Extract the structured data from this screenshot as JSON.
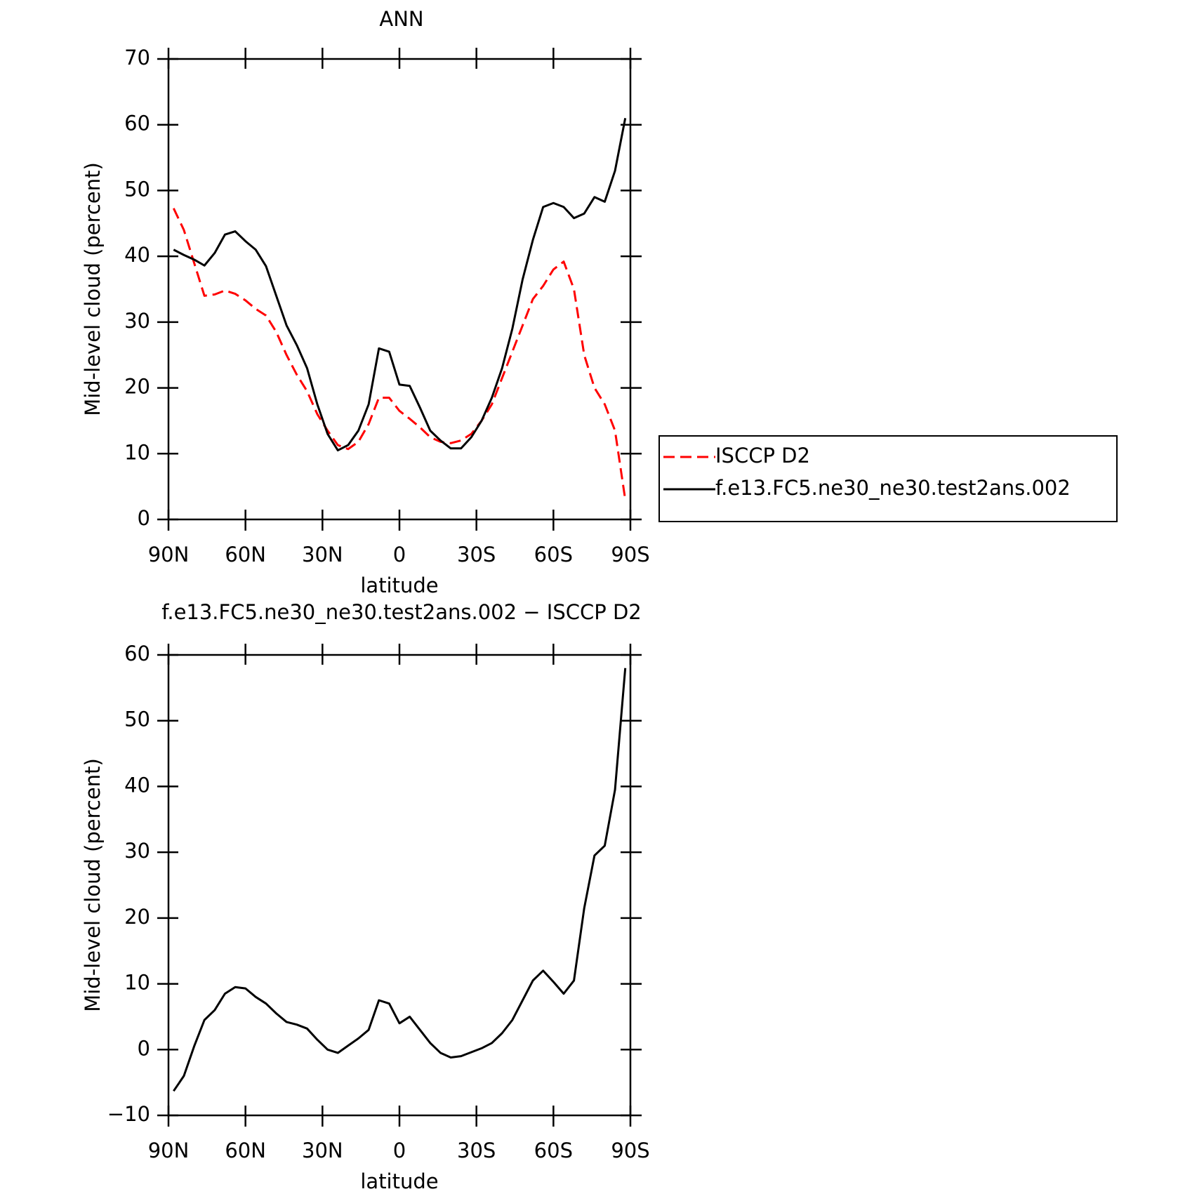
{
  "chart_data": [
    {
      "type": "line",
      "title": "ANN",
      "xlabel": "latitude",
      "ylabel": "Mid-level cloud (percent)",
      "x": [
        88,
        84,
        80,
        76,
        72,
        68,
        64,
        60,
        56,
        52,
        48,
        44,
        40,
        36,
        32,
        28,
        24,
        20,
        16,
        12,
        8,
        4,
        0,
        -4,
        -8,
        -12,
        -16,
        -20,
        -24,
        -28,
        -32,
        -36,
        -40,
        -44,
        -48,
        -52,
        -56,
        -60,
        -64,
        -68,
        -72,
        -76,
        -80,
        -84,
        -88
      ],
      "xlim": [
        90,
        -90
      ],
      "xticks": [
        {
          "value": 90,
          "label": "90N"
        },
        {
          "value": 60,
          "label": "60N"
        },
        {
          "value": 30,
          "label": "30N"
        },
        0,
        {
          "value": -30,
          "label": "30S"
        },
        {
          "value": -60,
          "label": "60S"
        },
        {
          "value": -90,
          "label": "90S"
        }
      ],
      "ylim": [
        0,
        70
      ],
      "yticks": [
        0,
        10,
        20,
        30,
        40,
        50,
        60,
        70
      ],
      "legend": "right",
      "series": [
        {
          "name": "ISCCP D2",
          "color": "#ff0000",
          "line_style": "dashed",
          "values": [
            47.3,
            44,
            39,
            34,
            34.2,
            34.8,
            34.3,
            33.3,
            32,
            31,
            28.5,
            25,
            22,
            19.5,
            16,
            13.5,
            11.3,
            10.7,
            11.8,
            14.5,
            18.5,
            18.5,
            16.5,
            15.3,
            14,
            12.5,
            11.8,
            11.6,
            12,
            13,
            15,
            17.5,
            21.5,
            25.5,
            29.5,
            33.5,
            35.5,
            38,
            39.2,
            35,
            25,
            20,
            17.5,
            13.5,
            3
          ]
        },
        {
          "name": "f.e13.FC5.ne30_ne30.test2ans.002",
          "color": "#000000",
          "line_style": "solid",
          "values": [
            41,
            40.2,
            39.5,
            38.6,
            40.5,
            43.3,
            43.8,
            42.3,
            41,
            38.5,
            34,
            29.5,
            26.5,
            23,
            17.5,
            13,
            10.5,
            11.3,
            13.5,
            17.5,
            26,
            25.5,
            20.5,
            20.3,
            17,
            13.5,
            12,
            10.8,
            10.8,
            12.5,
            15,
            18.5,
            23,
            29,
            36.5,
            42.5,
            47.5,
            48.1,
            47.5,
            45.8,
            46.5,
            49,
            48.3,
            53,
            61
          ]
        }
      ]
    },
    {
      "type": "line",
      "title": "f.e13.FC5.ne30_ne30.test2ans.002 − ISCCP D2",
      "xlabel": "latitude",
      "ylabel": "Mid-level cloud (percent)",
      "x": [
        88,
        84,
        80,
        76,
        72,
        68,
        64,
        60,
        56,
        52,
        48,
        44,
        40,
        36,
        32,
        28,
        24,
        20,
        16,
        12,
        8,
        4,
        0,
        -4,
        -8,
        -12,
        -16,
        -20,
        -24,
        -28,
        -32,
        -36,
        -40,
        -44,
        -48,
        -52,
        -56,
        -60,
        -64,
        -68,
        -72,
        -76,
        -80,
        -84,
        -88
      ],
      "xlim": [
        90,
        -90
      ],
      "xticks": [
        {
          "value": 90,
          "label": "90N"
        },
        {
          "value": 60,
          "label": "60N"
        },
        {
          "value": 30,
          "label": "30N"
        },
        0,
        {
          "value": -30,
          "label": "30S"
        },
        {
          "value": -60,
          "label": "60S"
        },
        {
          "value": -90,
          "label": "90S"
        }
      ],
      "ylim": [
        -10,
        60
      ],
      "yticks": [
        {
          "value": -10,
          "label": "−10"
        },
        0,
        10,
        20,
        30,
        40,
        50,
        60
      ],
      "series": [
        {
          "color": "#000000",
          "line_style": "solid",
          "values": [
            -6.3,
            -4,
            0.5,
            4.5,
            6,
            8.5,
            9.5,
            9.3,
            8,
            7,
            5.5,
            4.2,
            3.8,
            3.2,
            1.5,
            0,
            -0.5,
            0.6,
            1.7,
            3,
            7.5,
            7,
            4,
            5,
            3,
            1,
            -0.5,
            -1.2,
            -1,
            -0.4,
            0.2,
            1,
            2.5,
            4.5,
            7.5,
            10.5,
            12,
            10.3,
            8.5,
            10.5,
            21.5,
            29.5,
            31,
            39.5,
            58
          ]
        }
      ]
    }
  ]
}
